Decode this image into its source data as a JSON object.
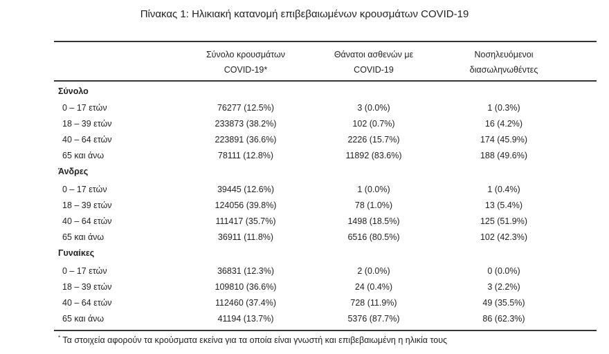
{
  "title": "Πίνακας 1: Ηλικιακή κατανομή επιβεβαιωμένων κρουσμάτων COVID-19",
  "headers": [
    {
      "line1": "Σύνολο κρουσμάτων",
      "line2": "COVID-19*"
    },
    {
      "line1": "Θάνατοι ασθενών με",
      "line2": "COVID-19"
    },
    {
      "line1": "Νοσηλευόμενοι",
      "line2": "διασωληνωθέντες"
    }
  ],
  "groups": [
    {
      "name": "Σύνολο",
      "rows": [
        [
          "0 – 17 ετών",
          "76277 (12.5%)",
          "3 (0.0%)",
          "1 (0.3%)"
        ],
        [
          "18 – 39 ετών",
          "233873 (38.2%)",
          "102 (0.7%)",
          "16 (4.2%)"
        ],
        [
          "40 – 64 ετών",
          "223891 (36.6%)",
          "2226 (15.7%)",
          "174 (45.9%)"
        ],
        [
          "65 και άνω",
          "78111 (12.8%)",
          "11892 (83.6%)",
          "188 (49.6%)"
        ]
      ]
    },
    {
      "name": "Άνδρες",
      "rows": [
        [
          "0 – 17 ετών",
          "39445 (12.6%)",
          "1 (0.0%)",
          "1 (0.4%)"
        ],
        [
          "18 – 39 ετών",
          "124056 (39.8%)",
          "78 (1.0%)",
          "13 (5.4%)"
        ],
        [
          "40 – 64 ετών",
          "111417 (35.7%)",
          "1498 (18.5%)",
          "125 (51.9%)"
        ],
        [
          "65 και άνω",
          "36911 (11.8%)",
          "6516 (80.5%)",
          "102 (42.3%)"
        ]
      ]
    },
    {
      "name": "Γυναίκες",
      "rows": [
        [
          "0 – 17 ετών",
          "36831 (12.3%)",
          "2 (0.0%)",
          "0 (0.0%)"
        ],
        [
          "18 – 39 ετών",
          "109810 (36.6%)",
          "24 (0.4%)",
          "3 (2.2%)"
        ],
        [
          "40 – 64 ετών",
          "112460 (37.4%)",
          "728 (11.9%)",
          "49 (35.5%)"
        ],
        [
          "65 και άνω",
          "41194 (13.7%)",
          "5376 (87.7%)",
          "86 (62.3%)"
        ]
      ]
    }
  ],
  "footnote": {
    "mark": "*",
    "text": "Τα στοιχεία αφορούν τα κρούσματα εκείνα για τα οποία είναι γνωστή και επιβεβαιωμένη η ηλικία τους"
  }
}
